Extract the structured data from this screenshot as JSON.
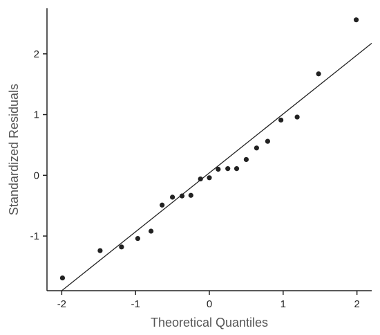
{
  "chart_data": {
    "type": "scatter",
    "title": "",
    "xlabel": "Theoretical Quantiles",
    "ylabel": "Standardized Residuals",
    "xlim": [
      -2.2,
      2.2
    ],
    "ylim": [
      -1.9,
      2.75
    ],
    "xticks": [
      -2,
      -1,
      0,
      1,
      2
    ],
    "yticks": [
      -1,
      0,
      1,
      2
    ],
    "xtick_labels": [
      "-2",
      "-1",
      "0",
      "1",
      "2"
    ],
    "ytick_labels": [
      "-1",
      "0",
      "1",
      "2"
    ],
    "grid": false,
    "points": [
      {
        "x": -1.99,
        "y": -1.69
      },
      {
        "x": -1.48,
        "y": -1.24
      },
      {
        "x": -1.19,
        "y": -1.18
      },
      {
        "x": -0.97,
        "y": -1.04
      },
      {
        "x": -0.79,
        "y": -0.92
      },
      {
        "x": -0.64,
        "y": -0.49
      },
      {
        "x": -0.5,
        "y": -0.36
      },
      {
        "x": -0.37,
        "y": -0.34
      },
      {
        "x": -0.25,
        "y": -0.33
      },
      {
        "x": -0.12,
        "y": -0.06
      },
      {
        "x": 0.0,
        "y": -0.04
      },
      {
        "x": 0.12,
        "y": 0.1
      },
      {
        "x": 0.25,
        "y": 0.11
      },
      {
        "x": 0.37,
        "y": 0.11
      },
      {
        "x": 0.5,
        "y": 0.26
      },
      {
        "x": 0.64,
        "y": 0.45
      },
      {
        "x": 0.79,
        "y": 0.56
      },
      {
        "x": 0.97,
        "y": 0.91
      },
      {
        "x": 1.19,
        "y": 0.96
      },
      {
        "x": 1.48,
        "y": 1.67
      },
      {
        "x": 1.99,
        "y": 2.56
      }
    ],
    "reference_line": {
      "intercept": 0.04,
      "slope": 0.97
    },
    "marker_color": "#222222",
    "line_color": "#222222"
  }
}
